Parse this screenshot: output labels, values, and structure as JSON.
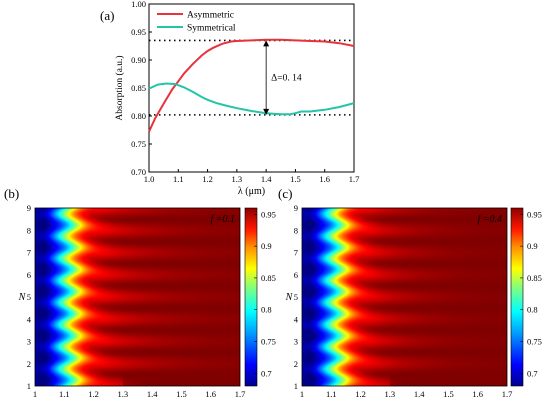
{
  "panels": {
    "a": "(a)",
    "b": "(b)",
    "c": "(c)"
  },
  "chart_data": [
    {
      "type": "line",
      "panel": "(a)",
      "xlabel": "λ (μm)",
      "ylabel": "Absorption (a.u.)",
      "xlim": [
        1.0,
        1.7
      ],
      "ylim": [
        0.7,
        1.0
      ],
      "xticks": [
        "1.0",
        "1.1",
        "1.2",
        "1.3",
        "1.4",
        "1.5",
        "1.6",
        "1.7"
      ],
      "yticks": [
        "0.70",
        "0.75",
        "0.80",
        "0.85",
        "0.90",
        "0.95",
        "1.00"
      ],
      "legend_position": "top-left",
      "grid": false,
      "series": [
        {
          "name": "Asymmetric",
          "color": "#e8323c",
          "x": [
            1.0,
            1.02,
            1.05,
            1.08,
            1.1,
            1.12,
            1.15,
            1.18,
            1.2,
            1.22,
            1.25,
            1.28,
            1.3,
            1.35,
            1.4,
            1.45,
            1.5,
            1.55,
            1.6,
            1.65,
            1.7
          ],
          "y": [
            0.772,
            0.795,
            0.822,
            0.848,
            0.862,
            0.876,
            0.893,
            0.908,
            0.916,
            0.922,
            0.929,
            0.933,
            0.934,
            0.935,
            0.936,
            0.936,
            0.935,
            0.934,
            0.933,
            0.93,
            0.925
          ]
        },
        {
          "name": "Symmetrical",
          "color": "#23c4a8",
          "x": [
            1.0,
            1.03,
            1.06,
            1.09,
            1.12,
            1.15,
            1.18,
            1.2,
            1.23,
            1.26,
            1.3,
            1.35,
            1.4,
            1.45,
            1.48,
            1.5,
            1.52,
            1.55,
            1.6,
            1.65,
            1.7
          ],
          "y": [
            0.849,
            0.856,
            0.858,
            0.857,
            0.851,
            0.843,
            0.834,
            0.829,
            0.823,
            0.819,
            0.814,
            0.809,
            0.805,
            0.803,
            0.803,
            0.805,
            0.808,
            0.808,
            0.811,
            0.816,
            0.823
          ]
        }
      ],
      "reference_lines": [
        0.935,
        0.802
      ],
      "annotation": {
        "text": "Δ=0. 14",
        "x": 1.4,
        "from": 0.935,
        "to": 0.802
      }
    },
    {
      "type": "heatmap",
      "panel": "(b)",
      "ylabel": "N",
      "xlim": [
        1.0,
        1.7
      ],
      "ylim": [
        1,
        9
      ],
      "xticks": [
        "1",
        "1.1",
        "1.2",
        "1.3",
        "1.4",
        "1.5",
        "1.6",
        "1.7"
      ],
      "yticks": [
        "1",
        "2",
        "3",
        "4",
        "5",
        "6",
        "7",
        "8",
        "9"
      ],
      "label": "f =0.1",
      "colorbar_ticks": [
        "0.95",
        "0.9",
        "0.85",
        "0.8",
        "0.75",
        "0.7"
      ],
      "colorbar_range": [
        0.68,
        0.96
      ]
    },
    {
      "type": "heatmap",
      "panel": "(c)",
      "ylabel": "N",
      "xlim": [
        1.0,
        1.7
      ],
      "ylim": [
        1,
        9
      ],
      "xticks": [
        "1",
        "1.1",
        "1.2",
        "1.3",
        "1.4",
        "1.5",
        "1.6",
        "1.7"
      ],
      "yticks": [
        "1",
        "2",
        "3",
        "4",
        "5",
        "6",
        "7",
        "8",
        "9"
      ],
      "label": "f =0.4",
      "colorbar_ticks": [
        "0.95",
        "0.9",
        "0.85",
        "0.8",
        "0.75",
        "0.7"
      ],
      "colorbar_range": [
        0.68,
        0.96
      ]
    }
  ]
}
